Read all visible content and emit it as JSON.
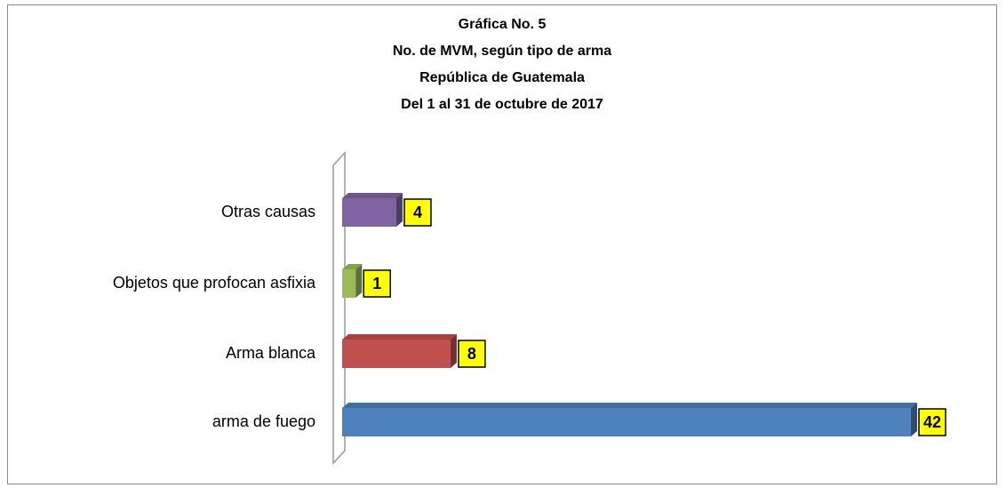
{
  "chart_data": {
    "type": "bar",
    "orientation": "horizontal",
    "title": [
      "Gráfica No. 5",
      "No. de MVM, según tipo de arma",
      "República de Guatemala",
      "Del 1 al 31 de octubre de 2017"
    ],
    "categories": [
      "Otras causas",
      "Objetos que profocan asfixia",
      "Arma blanca",
      "arma de fuego"
    ],
    "values": [
      4,
      1,
      8,
      42
    ],
    "colors": [
      "#8064a2",
      "#9bbb59",
      "#c0504d",
      "#4f81bd"
    ]
  }
}
